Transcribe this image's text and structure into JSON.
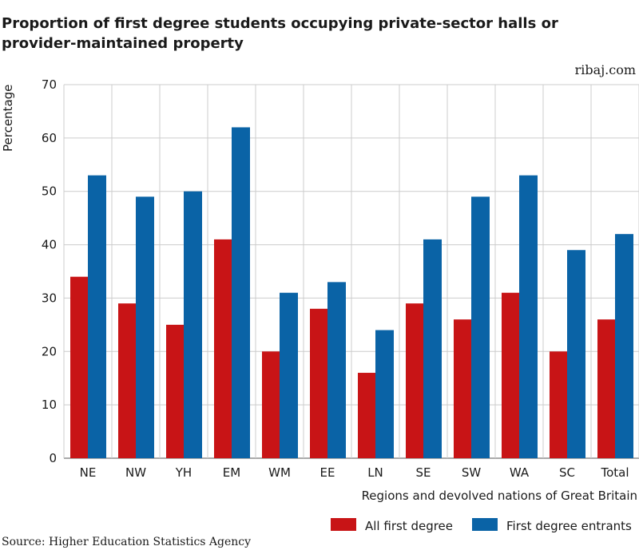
{
  "title_line1": "Proportion of first degree students occupying private-sector halls or",
  "title_line2": "provider-maintained property",
  "credit": "ribaj.com",
  "source": "Source: Higher Education Statistics Agency",
  "colors": {
    "red": "#c81416",
    "blue": "#0a63a6",
    "grid": "#cccccc"
  },
  "chart_data": {
    "type": "bar",
    "title": "Proportion of first degree students occupying private-sector halls or provider-maintained property",
    "xlabel": "Regions and devolved nations of Great Britain",
    "ylabel": "Percentage",
    "ylim": [
      0,
      70
    ],
    "yticks": [
      0,
      10,
      20,
      30,
      40,
      50,
      60,
      70
    ],
    "grid": true,
    "legend_position": "bottom-right",
    "categories": [
      "NE",
      "NW",
      "YH",
      "EM",
      "WM",
      "EE",
      "LN",
      "SE",
      "SW",
      "WA",
      "SC",
      "Total"
    ],
    "series": [
      {
        "name": "All first degree",
        "color": "#c81416",
        "values": [
          34,
          29,
          25,
          41,
          20,
          28,
          16,
          29,
          26,
          31,
          20,
          26
        ]
      },
      {
        "name": "First degree entrants",
        "color": "#0a63a6",
        "values": [
          53,
          49,
          50,
          62,
          31,
          33,
          24,
          41,
          49,
          53,
          39,
          42
        ]
      }
    ]
  }
}
